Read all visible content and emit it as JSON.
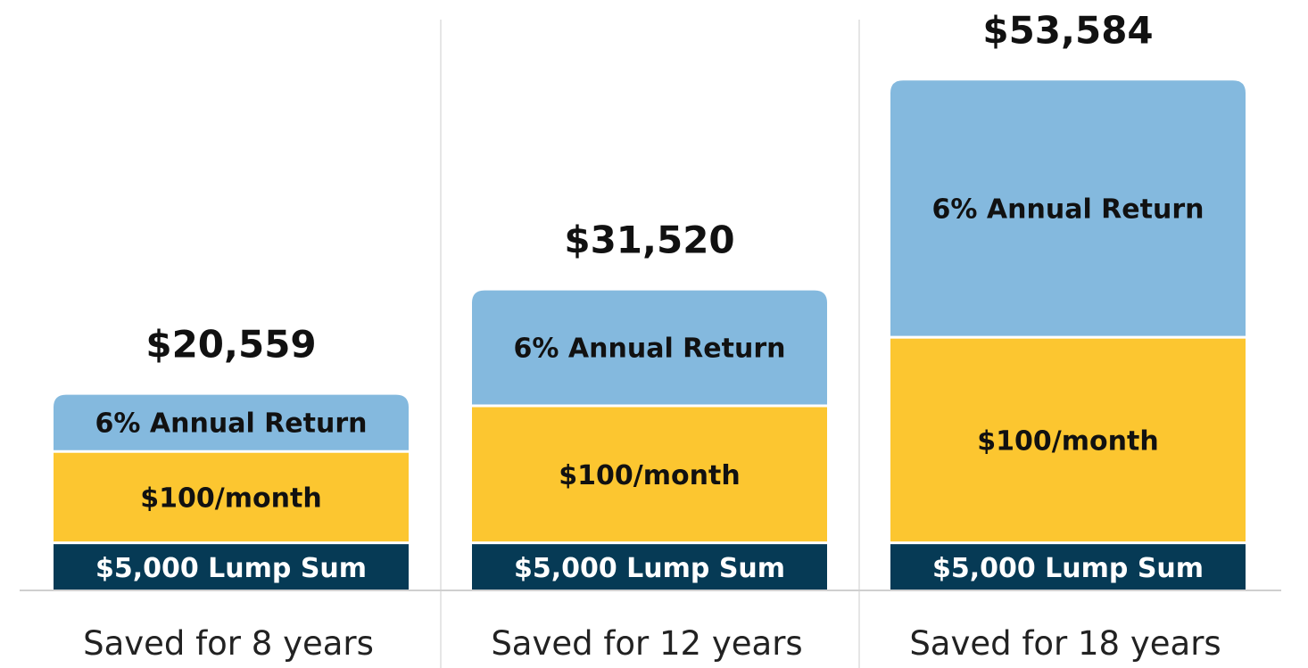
{
  "chart_data": {
    "type": "bar",
    "stacked": true,
    "categories": [
      "Saved for 8 years",
      "Saved for 12 years",
      "Saved for 18 years"
    ],
    "totals": [
      "$20,559",
      "$31,520",
      "$53,584"
    ],
    "total_values": [
      20559,
      31520,
      53584
    ],
    "series": [
      {
        "name": "$5,000 Lump Sum",
        "color": "#063a55",
        "label_color": "#ffffff",
        "values": [
          5000,
          5000,
          5000
        ]
      },
      {
        "name": "$100/month",
        "color": "#fcc630",
        "label_color": "#111111",
        "values": [
          9600,
          14400,
          21600
        ]
      },
      {
        "name": "6% Annual Return",
        "color": "#84b9de",
        "label_color": "#111111",
        "values": [
          5959,
          12120,
          26984
        ]
      }
    ],
    "grid": false,
    "legend": "none"
  }
}
